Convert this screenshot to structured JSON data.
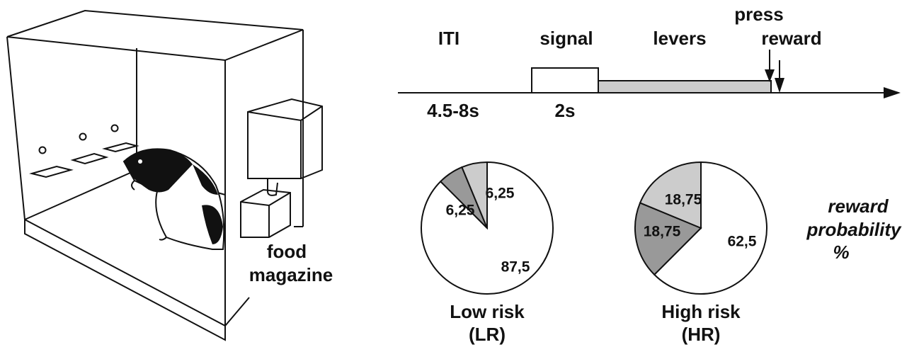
{
  "timeline": {
    "phases": [
      "ITI",
      "signal",
      "levers"
    ],
    "press": "press",
    "reward": "reward",
    "durations": [
      "4.5-8s",
      "2s"
    ]
  },
  "apparatus": {
    "label_lines": [
      "food",
      "magazine"
    ]
  },
  "legend_note": [
    "reward",
    "probability",
    "%"
  ],
  "chart_data": [
    {
      "type": "pie",
      "title": "Low risk",
      "subtitle": "(LR)",
      "values": [
        87.5,
        6.25,
        6.25
      ],
      "value_labels": [
        "87,5",
        "6,25",
        "6,25"
      ],
      "colors": [
        "#ffffff",
        "#999999",
        "#cccccc"
      ]
    },
    {
      "type": "pie",
      "title": "High risk",
      "subtitle": "(HR)",
      "values": [
        62.5,
        18.75,
        18.75
      ],
      "value_labels": [
        "62,5",
        "18,75",
        "18,75"
      ],
      "colors": [
        "#ffffff",
        "#999999",
        "#cccccc"
      ]
    }
  ]
}
